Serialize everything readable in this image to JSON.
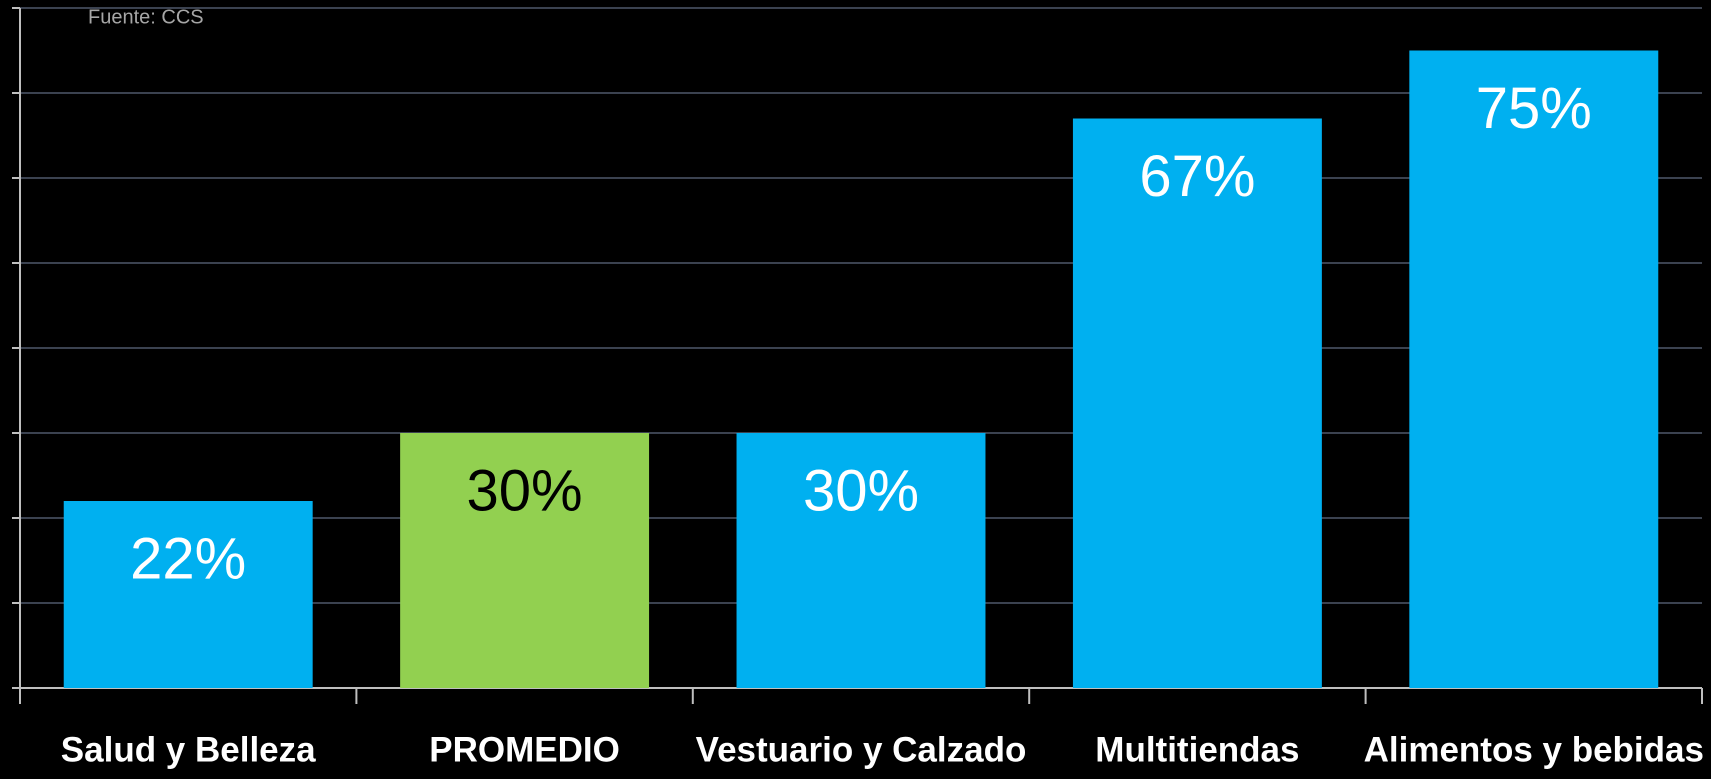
{
  "chart_data": {
    "type": "bar",
    "source": "Fuente: CCS",
    "categories": [
      "Salud y Belleza",
      "PROMEDIO",
      "Vestuario y Calzado",
      "Multitiendas",
      "Alimentos y bebidas"
    ],
    "values": [
      22,
      30,
      30,
      67,
      75
    ],
    "value_labels": [
      "22%",
      "30%",
      "30%",
      "67%",
      "75%"
    ],
    "colors": [
      "#00b0f0",
      "#92d050",
      "#00b0f0",
      "#00b0f0",
      "#00b0f0"
    ],
    "label_colors": [
      "#ffffff",
      "#000000",
      "#ffffff",
      "#ffffff",
      "#ffffff"
    ],
    "ylim": [
      0,
      80
    ],
    "yticks": [
      0,
      10,
      20,
      30,
      40,
      50,
      60,
      70,
      80
    ],
    "grid": true
  }
}
